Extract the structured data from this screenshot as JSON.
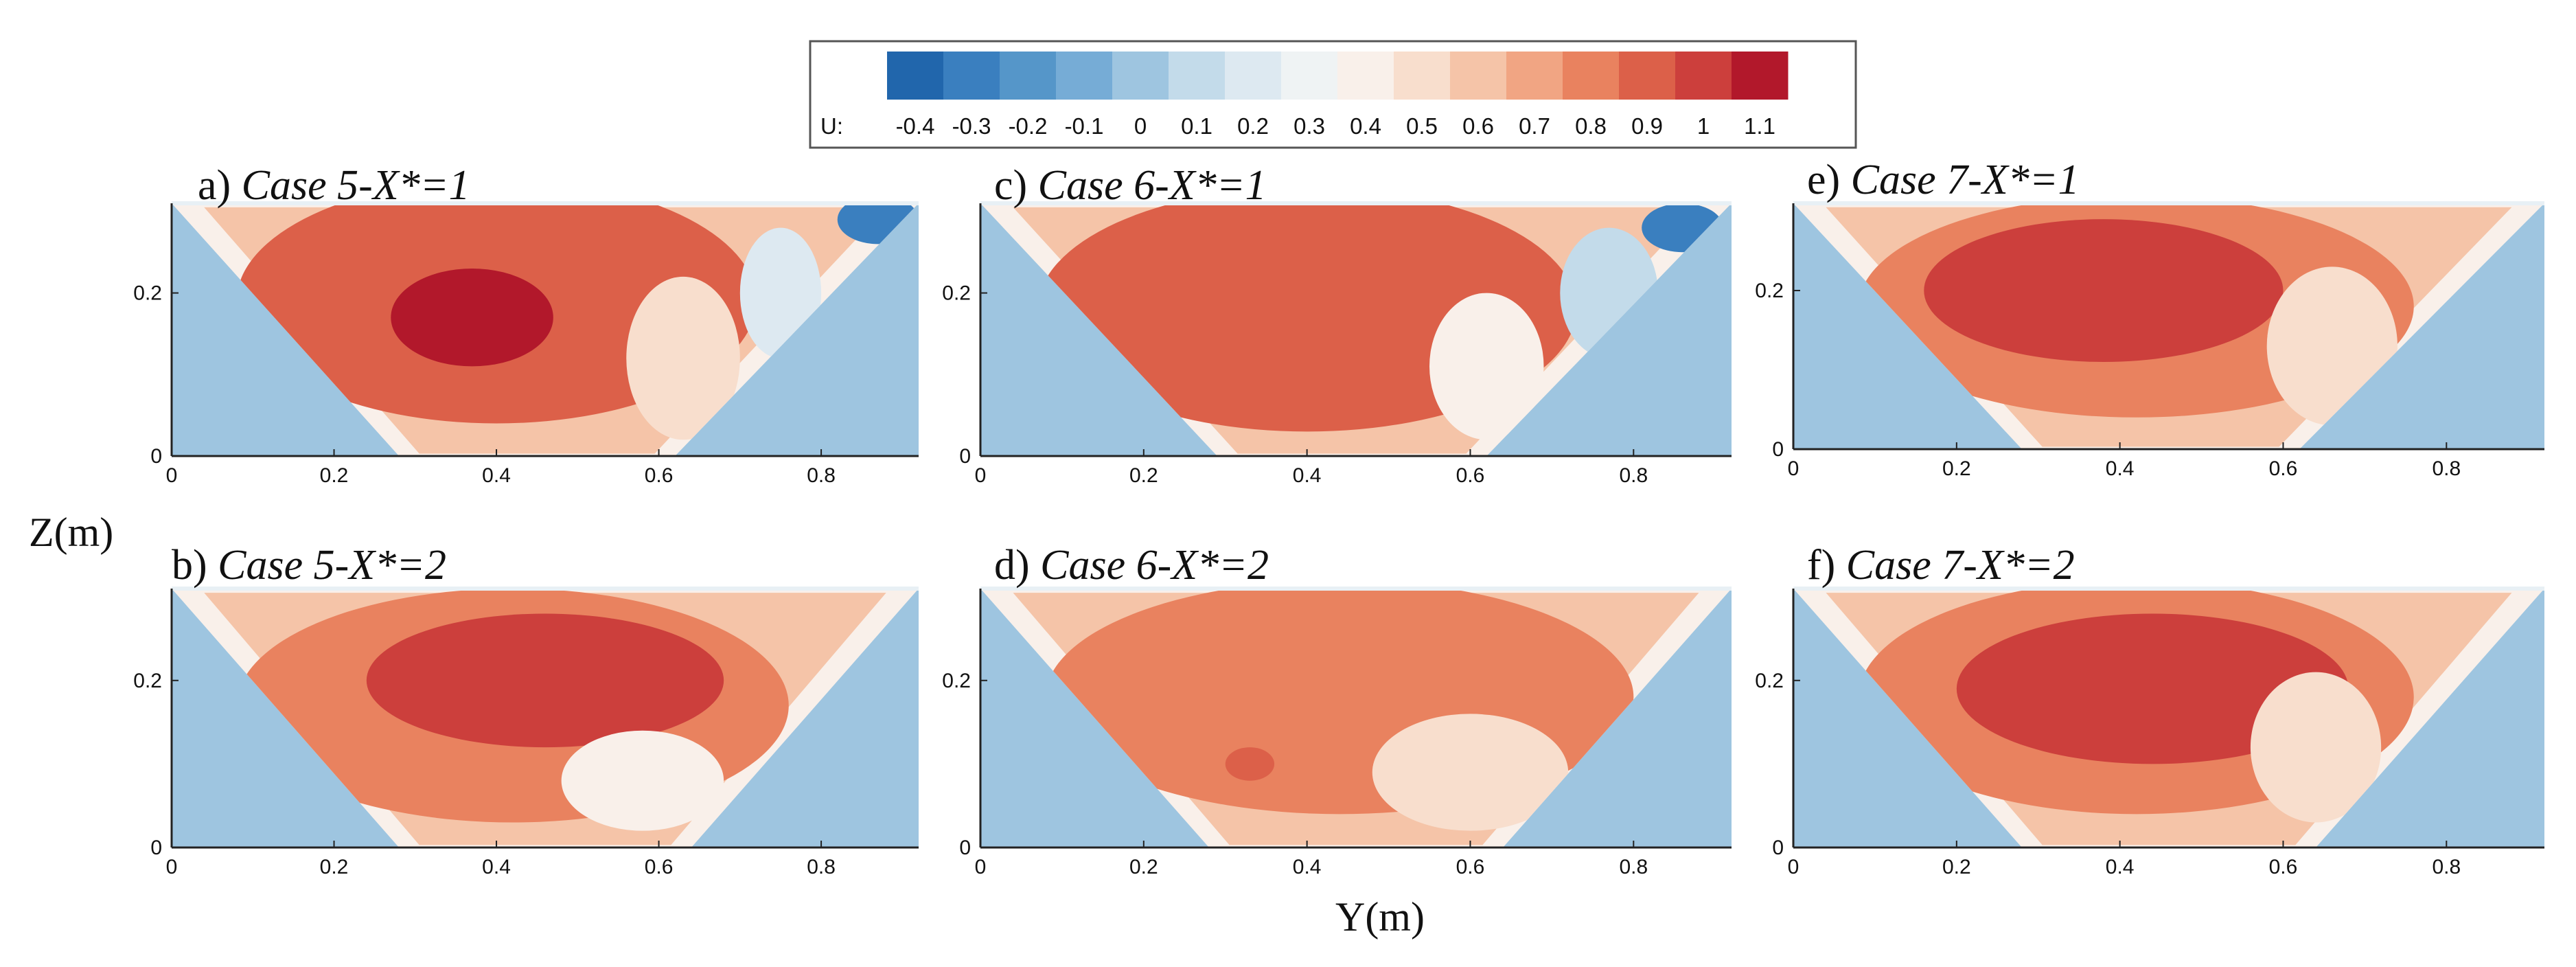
{
  "figure": {
    "xlabel": "Y(m)",
    "ylabel": "Z(m)"
  },
  "colorbar": {
    "label": "U:",
    "ticks": [
      "-0.4",
      "-0.3",
      "-0.2",
      "-0.1",
      "0",
      "0.1",
      "0.2",
      "0.3",
      "0.4",
      "0.5",
      "0.6",
      "0.7",
      "0.8",
      "0.9",
      "1",
      "1.1"
    ],
    "levels": [
      -0.4,
      -0.3,
      -0.2,
      -0.1,
      0,
      0.1,
      0.2,
      0.3,
      0.4,
      0.5,
      0.6,
      0.7,
      0.8,
      0.9,
      1,
      1.1
    ],
    "colors": [
      "#2166ac",
      "#3a7fbf",
      "#5596c9",
      "#76acd6",
      "#9ec5e0",
      "#c3dbea",
      "#dde9f1",
      "#eff3f4",
      "#f9f0ea",
      "#f8decd",
      "#f5c4a8",
      "#f1a583",
      "#e9825f",
      "#dc6049",
      "#cc3f3c",
      "#b2182b"
    ]
  },
  "chart_data": [
    {
      "type": "heatmap",
      "title": "a) Case 5-X*=1",
      "label_prefix": "a)",
      "label_text": "Case 5-X*=1",
      "xlabel": "Y(m)",
      "ylabel": "Z(m)",
      "xlim": [
        0,
        0.92
      ],
      "ylim": [
        0,
        0.31
      ],
      "xticks": [
        "0",
        "0.2",
        "0.4",
        "0.6",
        "0.8"
      ],
      "yticks": [
        "0",
        "0.2"
      ],
      "channel_cross_section": {
        "bottom_y": [
          0.28,
          0.62
        ],
        "top_y": [
          0.0,
          0.92
        ],
        "top_z": 0.31
      },
      "background_U": 0.0,
      "regions": [
        {
          "U": 0.9,
          "cx": 0.4,
          "cz": 0.19,
          "ry": 0.32,
          "rz": 0.15
        },
        {
          "U": 1.1,
          "cx": 0.37,
          "cz": 0.17,
          "ry": 0.1,
          "rz": 0.06
        },
        {
          "U": 0.5,
          "cx": 0.63,
          "cz": 0.12,
          "ry": 0.07,
          "rz": 0.1
        },
        {
          "U": 0.2,
          "cx": 0.75,
          "cz": 0.2,
          "ry": 0.05,
          "rz": 0.08
        },
        {
          "U": -0.3,
          "cx": 0.87,
          "cz": 0.29,
          "ry": 0.05,
          "rz": 0.03
        }
      ]
    },
    {
      "type": "heatmap",
      "title": "b) Case 5-X*=2",
      "label_prefix": "b)",
      "label_text": "Case 5-X*=2",
      "xlabel": "Y(m)",
      "ylabel": "Z(m)",
      "xlim": [
        0,
        0.92
      ],
      "ylim": [
        0,
        0.31
      ],
      "xticks": [
        "0",
        "0.2",
        "0.4",
        "0.6",
        "0.8"
      ],
      "yticks": [
        "0",
        "0.2"
      ],
      "channel_cross_section": {
        "bottom_y": [
          0.28,
          0.64
        ],
        "top_y": [
          0.0,
          0.92
        ],
        "top_z": 0.31
      },
      "background_U": 0.0,
      "regions": [
        {
          "U": 0.8,
          "cx": 0.42,
          "cz": 0.17,
          "ry": 0.34,
          "rz": 0.14
        },
        {
          "U": 1.0,
          "cx": 0.46,
          "cz": 0.2,
          "ry": 0.22,
          "rz": 0.08
        },
        {
          "U": 0.4,
          "cx": 0.58,
          "cz": 0.08,
          "ry": 0.1,
          "rz": 0.06
        }
      ]
    },
    {
      "type": "heatmap",
      "title": "c) Case 6-X*=1",
      "label_prefix": "c)",
      "label_text": "Case 6-X*=1",
      "xlabel": "Y(m)",
      "ylabel": "Z(m)",
      "xlim": [
        0,
        0.92
      ],
      "ylim": [
        0,
        0.31
      ],
      "xticks": [
        "0",
        "0.2",
        "0.4",
        "0.6",
        "0.8"
      ],
      "yticks": [
        "0",
        "0.2"
      ],
      "channel_cross_section": {
        "bottom_y": [
          0.29,
          0.62
        ],
        "top_y": [
          0.0,
          0.92
        ],
        "top_z": 0.31
      },
      "background_U": 0.0,
      "regions": [
        {
          "U": 0.9,
          "cx": 0.4,
          "cz": 0.18,
          "ry": 0.33,
          "rz": 0.15
        },
        {
          "U": 0.4,
          "cx": 0.62,
          "cz": 0.11,
          "ry": 0.07,
          "rz": 0.09
        },
        {
          "U": 0.1,
          "cx": 0.77,
          "cz": 0.2,
          "ry": 0.06,
          "rz": 0.08
        },
        {
          "U": -0.3,
          "cx": 0.86,
          "cz": 0.28,
          "ry": 0.05,
          "rz": 0.03
        }
      ]
    },
    {
      "type": "heatmap",
      "title": "d) Case 6-X*=2",
      "label_prefix": "d)",
      "label_text": "Case 6-X*=2",
      "xlabel": "Y(m)",
      "ylabel": "Z(m)",
      "xlim": [
        0,
        0.92
      ],
      "ylim": [
        0,
        0.31
      ],
      "xticks": [
        "0",
        "0.2",
        "0.4",
        "0.6",
        "0.8"
      ],
      "yticks": [
        "0",
        "0.2"
      ],
      "channel_cross_section": {
        "bottom_y": [
          0.28,
          0.64
        ],
        "top_y": [
          0.0,
          0.92
        ],
        "top_z": 0.31
      },
      "background_U": 0.0,
      "regions": [
        {
          "U": 0.8,
          "cx": 0.44,
          "cz": 0.18,
          "ry": 0.36,
          "rz": 0.14
        },
        {
          "U": 0.5,
          "cx": 0.6,
          "cz": 0.09,
          "ry": 0.12,
          "rz": 0.07
        },
        {
          "U": 0.9,
          "cx": 0.33,
          "cz": 0.1,
          "ry": 0.03,
          "rz": 0.02
        }
      ]
    },
    {
      "type": "heatmap",
      "title": "e) Case 7-X*=1",
      "label_prefix": "e)",
      "label_text": "Case 7-X*=1",
      "xlabel": "Y(m)",
      "ylabel": "Z(m)",
      "xlim": [
        0,
        0.92
      ],
      "ylim": [
        0,
        0.31
      ],
      "xticks": [
        "0",
        "0.2",
        "0.4",
        "0.6",
        "0.8"
      ],
      "yticks": [
        "0",
        "0.2"
      ],
      "channel_cross_section": {
        "bottom_y": [
          0.28,
          0.62
        ],
        "top_y": [
          0.0,
          0.92
        ],
        "top_z": 0.31
      },
      "background_U": 0.0,
      "regions": [
        {
          "U": 0.8,
          "cx": 0.42,
          "cz": 0.18,
          "ry": 0.34,
          "rz": 0.14
        },
        {
          "U": 1.0,
          "cx": 0.38,
          "cz": 0.2,
          "ry": 0.22,
          "rz": 0.09
        },
        {
          "U": 0.5,
          "cx": 0.66,
          "cz": 0.13,
          "ry": 0.08,
          "rz": 0.1
        }
      ]
    },
    {
      "type": "heatmap",
      "title": "f) Case 7-X*=2",
      "label_prefix": "f)",
      "label_text": "Case 7-X*=2",
      "xlabel": "Y(m)",
      "ylabel": "Z(m)",
      "xlim": [
        0,
        0.92
      ],
      "ylim": [
        0,
        0.31
      ],
      "xticks": [
        "0",
        "0.2",
        "0.4",
        "0.6",
        "0.8"
      ],
      "yticks": [
        "0",
        "0.2"
      ],
      "channel_cross_section": {
        "bottom_y": [
          0.28,
          0.64
        ],
        "top_y": [
          0.0,
          0.92
        ],
        "top_z": 0.31
      },
      "background_U": 0.0,
      "regions": [
        {
          "U": 0.8,
          "cx": 0.42,
          "cz": 0.18,
          "ry": 0.34,
          "rz": 0.14
        },
        {
          "U": 1.0,
          "cx": 0.44,
          "cz": 0.19,
          "ry": 0.24,
          "rz": 0.09
        },
        {
          "U": 0.5,
          "cx": 0.64,
          "cz": 0.12,
          "ry": 0.08,
          "rz": 0.09
        }
      ]
    }
  ]
}
